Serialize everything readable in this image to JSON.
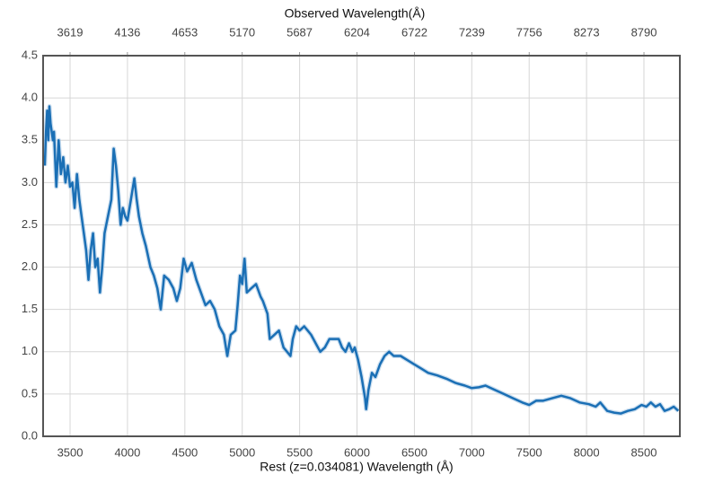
{
  "chart_data": {
    "type": "line",
    "x2label": "Observed Wavelength(Å)",
    "xlabel": "Rest (z=0.034081) Wavelength (Å)",
    "color": "#1a6fb5",
    "grid": true,
    "xlim": [
      3265,
      8813
    ],
    "xticks": [
      3500,
      4000,
      4500,
      5000,
      5500,
      6000,
      6500,
      7000,
      7500,
      8000,
      8500
    ],
    "x2lim": [
      3376.3,
      9113.4
    ],
    "x2ticks": [
      3619,
      4136,
      4653,
      5170,
      5687,
      6204,
      6722,
      7239,
      7756,
      8273,
      8790
    ],
    "ylim": [
      0,
      4.5
    ],
    "yticks": [
      {
        "value": 0,
        "label": "0.0"
      },
      0.5,
      {
        "value": 1,
        "label": "1.0"
      },
      1.5,
      {
        "value": 2,
        "label": "2.0"
      },
      2.5,
      {
        "value": 3,
        "label": "3.0"
      },
      3.5,
      {
        "value": 4,
        "label": "4.0"
      },
      4.5
    ],
    "x": [
      3280,
      3290,
      3300,
      3310,
      3320,
      3330,
      3350,
      3360,
      3380,
      3400,
      3420,
      3440,
      3460,
      3480,
      3500,
      3520,
      3540,
      3560,
      3580,
      3600,
      3620,
      3640,
      3660,
      3680,
      3700,
      3720,
      3740,
      3760,
      3780,
      3800,
      3830,
      3860,
      3880,
      3900,
      3920,
      3940,
      3960,
      3980,
      4000,
      4030,
      4060,
      4080,
      4100,
      4130,
      4160,
      4200,
      4230,
      4260,
      4290,
      4320,
      4360,
      4400,
      4430,
      4460,
      4490,
      4520,
      4560,
      4600,
      4640,
      4680,
      4720,
      4760,
      4800,
      4840,
      4870,
      4900,
      4940,
      4960,
      4980,
      5000,
      5020,
      5040,
      5080,
      5120,
      5160,
      5180,
      5220,
      5240,
      5280,
      5320,
      5360,
      5390,
      5420,
      5440,
      5470,
      5500,
      5540,
      5570,
      5600,
      5640,
      5680,
      5720,
      5760,
      5800,
      5840,
      5870,
      5900,
      5930,
      5960,
      5980,
      6010,
      6040,
      6070,
      6080,
      6100,
      6130,
      6160,
      6200,
      6240,
      6280,
      6320,
      6380,
      6440,
      6500,
      6560,
      6620,
      6700,
      6780,
      6860,
      6940,
      7000,
      7060,
      7120,
      7200,
      7280,
      7360,
      7440,
      7500,
      7560,
      7620,
      7700,
      7780,
      7860,
      7940,
      8020,
      8080,
      8120,
      8180,
      8240,
      8300,
      8360,
      8420,
      8480,
      8520,
      8560,
      8600,
      8640,
      8680,
      8720,
      8760,
      8800
    ],
    "values": [
      3.2,
      3.6,
      3.85,
      3.5,
      3.9,
      3.7,
      3.5,
      3.6,
      2.95,
      3.5,
      3.1,
      3.3,
      3.0,
      3.2,
      2.95,
      3.0,
      2.7,
      3.1,
      2.8,
      2.6,
      2.4,
      2.2,
      1.85,
      2.2,
      2.4,
      2.0,
      2.1,
      1.7,
      2.0,
      2.4,
      2.6,
      2.8,
      3.4,
      3.2,
      2.9,
      2.5,
      2.7,
      2.6,
      2.55,
      2.8,
      3.05,
      2.8,
      2.6,
      2.4,
      2.25,
      2.0,
      1.9,
      1.75,
      1.5,
      1.9,
      1.85,
      1.75,
      1.6,
      1.75,
      2.1,
      1.95,
      2.05,
      1.85,
      1.7,
      1.55,
      1.6,
      1.5,
      1.3,
      1.2,
      0.95,
      1.2,
      1.25,
      1.55,
      1.9,
      1.8,
      2.1,
      1.7,
      1.75,
      1.8,
      1.65,
      1.6,
      1.45,
      1.15,
      1.2,
      1.25,
      1.05,
      1.0,
      0.95,
      1.15,
      1.3,
      1.25,
      1.3,
      1.25,
      1.2,
      1.1,
      1.0,
      1.05,
      1.15,
      1.15,
      1.15,
      1.05,
      1.0,
      1.1,
      1.0,
      1.05,
      0.9,
      0.7,
      0.45,
      0.32,
      0.55,
      0.75,
      0.7,
      0.85,
      0.95,
      1.0,
      0.95,
      0.95,
      0.9,
      0.85,
      0.8,
      0.75,
      0.72,
      0.68,
      0.63,
      0.6,
      0.57,
      0.58,
      0.6,
      0.55,
      0.5,
      0.45,
      0.4,
      0.37,
      0.42,
      0.42,
      0.45,
      0.48,
      0.45,
      0.4,
      0.38,
      0.35,
      0.4,
      0.3,
      0.28,
      0.27,
      0.3,
      0.32,
      0.37,
      0.35,
      0.4,
      0.35,
      0.38,
      0.3,
      0.32,
      0.35,
      0.3
    ]
  }
}
